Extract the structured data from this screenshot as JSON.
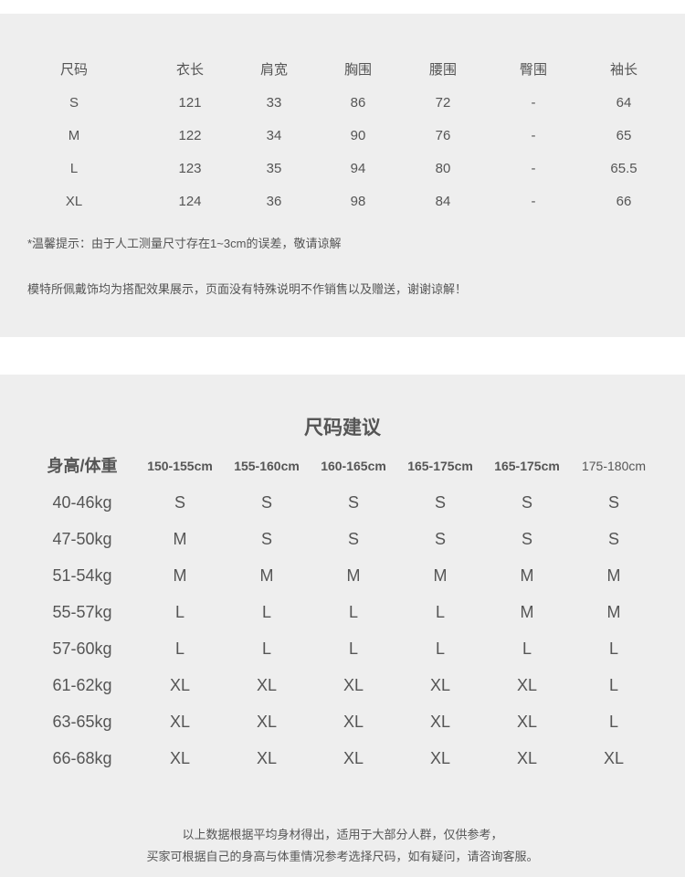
{
  "measurements": {
    "headers": [
      "尺码",
      "衣长",
      "肩宽",
      "胸围",
      "腰围",
      "臀围",
      "袖长"
    ],
    "rows": [
      [
        "S",
        "121",
        "33",
        "86",
        "72",
        "-",
        "64"
      ],
      [
        "M",
        "122",
        "34",
        "90",
        "76",
        "-",
        "65"
      ],
      [
        "L",
        "123",
        "35",
        "94",
        "80",
        "-",
        "65.5"
      ],
      [
        "XL",
        "124",
        "36",
        "98",
        "84",
        "-",
        "66"
      ]
    ],
    "note1": "*温馨提示：由于人工测量尺寸存在1~3cm的误差，敬请谅解",
    "note2": "模特所佩戴饰均为搭配效果展示，页面没有特殊说明不作销售以及赠送，谢谢谅解！"
  },
  "recommendation": {
    "title": "尺码建议",
    "headers": [
      "身高/体重",
      "150-155cm",
      "155-160cm",
      "160-165cm",
      "165-175cm",
      "165-175cm",
      "175-180cm"
    ],
    "rows": [
      [
        "40-46kg",
        "S",
        "S",
        "S",
        "S",
        "S",
        "S"
      ],
      [
        "47-50kg",
        "M",
        "S",
        "S",
        "S",
        "S",
        "S"
      ],
      [
        "51-54kg",
        "M",
        "M",
        "M",
        "M",
        "M",
        "M"
      ],
      [
        "55-57kg",
        "L",
        "L",
        "L",
        "L",
        "M",
        "M"
      ],
      [
        "57-60kg",
        "L",
        "L",
        "L",
        "L",
        "L",
        "L"
      ],
      [
        "61-62kg",
        "XL",
        "XL",
        "XL",
        "XL",
        "XL",
        "L"
      ],
      [
        "63-65kg",
        "XL",
        "XL",
        "XL",
        "XL",
        "XL",
        "L"
      ],
      [
        "66-68kg",
        "XL",
        "XL",
        "XL",
        "XL",
        "XL",
        "XL"
      ]
    ],
    "footer1": "以上数据根据平均身材得出，适用于大部分人群，仅供参考，",
    "footer2": "买家可根据自己的身高与体重情况参考选择尺码，如有疑问，请咨询客服。"
  }
}
